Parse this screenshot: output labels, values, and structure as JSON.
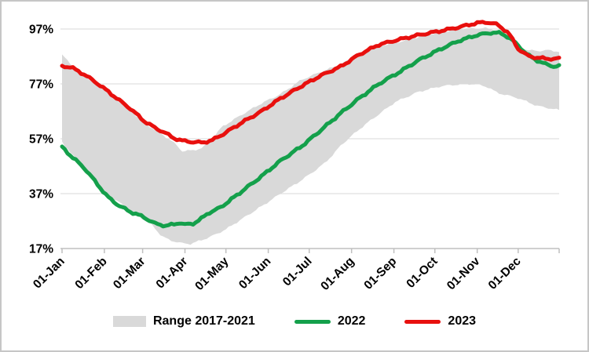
{
  "page": {
    "background": "#ffffff",
    "border_color": "#c6c6c6"
  },
  "chart_data": {
    "type": "line",
    "title": "",
    "xlabel": "",
    "ylabel": "",
    "y_axis": {
      "unit": "%",
      "min": 17,
      "max": 103,
      "ticks": [
        {
          "label": "97%",
          "value": 97
        },
        {
          "label": "77%",
          "value": 77
        },
        {
          "label": "57%",
          "value": 57
        },
        {
          "label": "37%",
          "value": 37
        },
        {
          "label": "17%",
          "value": 17
        }
      ]
    },
    "x_axis": {
      "end_day": 365,
      "ticks": [
        {
          "label": "01-Jan",
          "day": 1
        },
        {
          "label": "01-Feb",
          "day": 32
        },
        {
          "label": "01-Mar",
          "day": 60
        },
        {
          "label": "01-Apr",
          "day": 91
        },
        {
          "label": "01-May",
          "day": 121
        },
        {
          "label": "01-Jun",
          "day": 152
        },
        {
          "label": "01-Jul",
          "day": 182
        },
        {
          "label": "01-Aug",
          "day": 213
        },
        {
          "label": "01-Sep",
          "day": 244
        },
        {
          "label": "01-Oct",
          "day": 274
        },
        {
          "label": "01-Nov",
          "day": 305
        },
        {
          "label": "01-Dec",
          "day": 335
        }
      ]
    },
    "grid": {
      "color": "#d9d9d9",
      "axis_color": "#bfbfbf",
      "grid_on": true
    },
    "legend": {
      "position": "bottom"
    },
    "series": [
      {
        "name": "Range 2017-2021",
        "type": "band",
        "color": "#d9d9d9",
        "upper": [
          [
            1,
            87.5
          ],
          [
            10,
            83
          ],
          [
            20,
            79
          ],
          [
            34,
            74
          ],
          [
            43,
            70.5
          ],
          [
            51,
            67.3
          ],
          [
            61,
            62.8
          ],
          [
            76,
            58
          ],
          [
            83,
            55.5
          ],
          [
            89,
            52.5
          ],
          [
            97,
            52.8
          ],
          [
            104,
            53.7
          ],
          [
            111,
            57
          ],
          [
            118,
            61.3
          ],
          [
            132,
            65.6
          ],
          [
            147,
            69.9
          ],
          [
            161,
            73.3
          ],
          [
            176,
            78.4
          ],
          [
            190,
            81.3
          ],
          [
            205,
            84.1
          ],
          [
            219,
            88
          ],
          [
            233,
            90.8
          ],
          [
            248,
            92.3
          ],
          [
            262,
            94.1
          ],
          [
            277,
            95.7
          ],
          [
            291,
            97
          ],
          [
            305,
            97.3
          ],
          [
            312,
            97.3
          ],
          [
            320,
            96.5
          ],
          [
            328,
            93.5
          ],
          [
            335,
            90.5
          ],
          [
            342,
            89.3
          ],
          [
            349,
            89
          ],
          [
            356,
            89.3
          ],
          [
            361,
            89
          ],
          [
            365,
            88.8
          ]
        ],
        "lower": [
          [
            1,
            56
          ],
          [
            8,
            51.3
          ],
          [
            15,
            48
          ],
          [
            21,
            43.7
          ],
          [
            27,
            40.4
          ],
          [
            32,
            37
          ],
          [
            42,
            34.1
          ],
          [
            50,
            31.3
          ],
          [
            58,
            28.5
          ],
          [
            66,
            26
          ],
          [
            74,
            21.5
          ],
          [
            80,
            20
          ],
          [
            89,
            18.9
          ],
          [
            95,
            18.7
          ],
          [
            103,
            20
          ],
          [
            112,
            21.8
          ],
          [
            121,
            24
          ],
          [
            135,
            28.5
          ],
          [
            149,
            33
          ],
          [
            158,
            36
          ],
          [
            164,
            38
          ],
          [
            172,
            40.5
          ],
          [
            178,
            42.5
          ],
          [
            185,
            45
          ],
          [
            193,
            48
          ],
          [
            199,
            51
          ],
          [
            205,
            54.5
          ],
          [
            212,
            57.6
          ],
          [
            220,
            61
          ],
          [
            228,
            64.1
          ],
          [
            245,
            70.4
          ],
          [
            262,
            74.1
          ],
          [
            278,
            76.1
          ],
          [
            285,
            76.5
          ],
          [
            298,
            77
          ],
          [
            305,
            76.8
          ],
          [
            312,
            76
          ],
          [
            320,
            73.7
          ],
          [
            335,
            71.8
          ],
          [
            349,
            69
          ],
          [
            363,
            67.6
          ],
          [
            365,
            67.5
          ]
        ]
      },
      {
        "name": "2022",
        "type": "line",
        "color": "#14a04b",
        "points": [
          [
            1,
            54
          ],
          [
            8,
            50.5
          ],
          [
            17,
            46.5
          ],
          [
            26,
            41
          ],
          [
            34,
            36
          ],
          [
            43,
            32.5
          ],
          [
            51,
            30.4
          ],
          [
            61,
            28.4
          ],
          [
            69,
            26.1
          ],
          [
            77,
            25.3
          ],
          [
            83,
            25.8
          ],
          [
            87,
            26.4
          ],
          [
            91,
            25.7
          ],
          [
            97,
            26.1
          ],
          [
            102,
            27.5
          ],
          [
            108,
            29.9
          ],
          [
            114,
            31.2
          ],
          [
            118,
            32.3
          ],
          [
            132,
            37.6
          ],
          [
            147,
            43.3
          ],
          [
            161,
            49
          ],
          [
            176,
            54.1
          ],
          [
            190,
            59.9
          ],
          [
            205,
            66.3
          ],
          [
            219,
            71.9
          ],
          [
            233,
            77
          ],
          [
            248,
            81.3
          ],
          [
            262,
            85.6
          ],
          [
            277,
            89.4
          ],
          [
            291,
            92.6
          ],
          [
            305,
            94.8
          ],
          [
            316,
            95.7
          ],
          [
            322,
            95.5
          ],
          [
            328,
            94
          ],
          [
            335,
            91
          ],
          [
            342,
            87.5
          ],
          [
            349,
            85.5
          ],
          [
            356,
            84
          ],
          [
            361,
            83.4
          ],
          [
            365,
            83.5
          ]
        ]
      },
      {
        "name": "2023",
        "type": "line",
        "color": "#e8100e",
        "points": [
          [
            1,
            83.5
          ],
          [
            8,
            83
          ],
          [
            17,
            80.5
          ],
          [
            26,
            77.5
          ],
          [
            34,
            74.5
          ],
          [
            43,
            71
          ],
          [
            51,
            68
          ],
          [
            61,
            63.5
          ],
          [
            69,
            61
          ],
          [
            76,
            59.3
          ],
          [
            83,
            57.2
          ],
          [
            89,
            56.3
          ],
          [
            97,
            55.8
          ],
          [
            104,
            55.6
          ],
          [
            111,
            56.5
          ],
          [
            118,
            58.4
          ],
          [
            132,
            62.7
          ],
          [
            147,
            67
          ],
          [
            161,
            71.7
          ],
          [
            176,
            76.1
          ],
          [
            190,
            79.9
          ],
          [
            205,
            83.3
          ],
          [
            219,
            87.8
          ],
          [
            233,
            91.3
          ],
          [
            248,
            93.2
          ],
          [
            262,
            94.8
          ],
          [
            277,
            96.2
          ],
          [
            291,
            97.6
          ],
          [
            305,
            99.2
          ],
          [
            312,
            99.5
          ],
          [
            320,
            98.6
          ],
          [
            328,
            95.5
          ],
          [
            335,
            89.8
          ],
          [
            342,
            87.2
          ],
          [
            349,
            86.5
          ],
          [
            356,
            86.2
          ],
          [
            363,
            86.1
          ],
          [
            365,
            86.3
          ]
        ]
      }
    ]
  }
}
